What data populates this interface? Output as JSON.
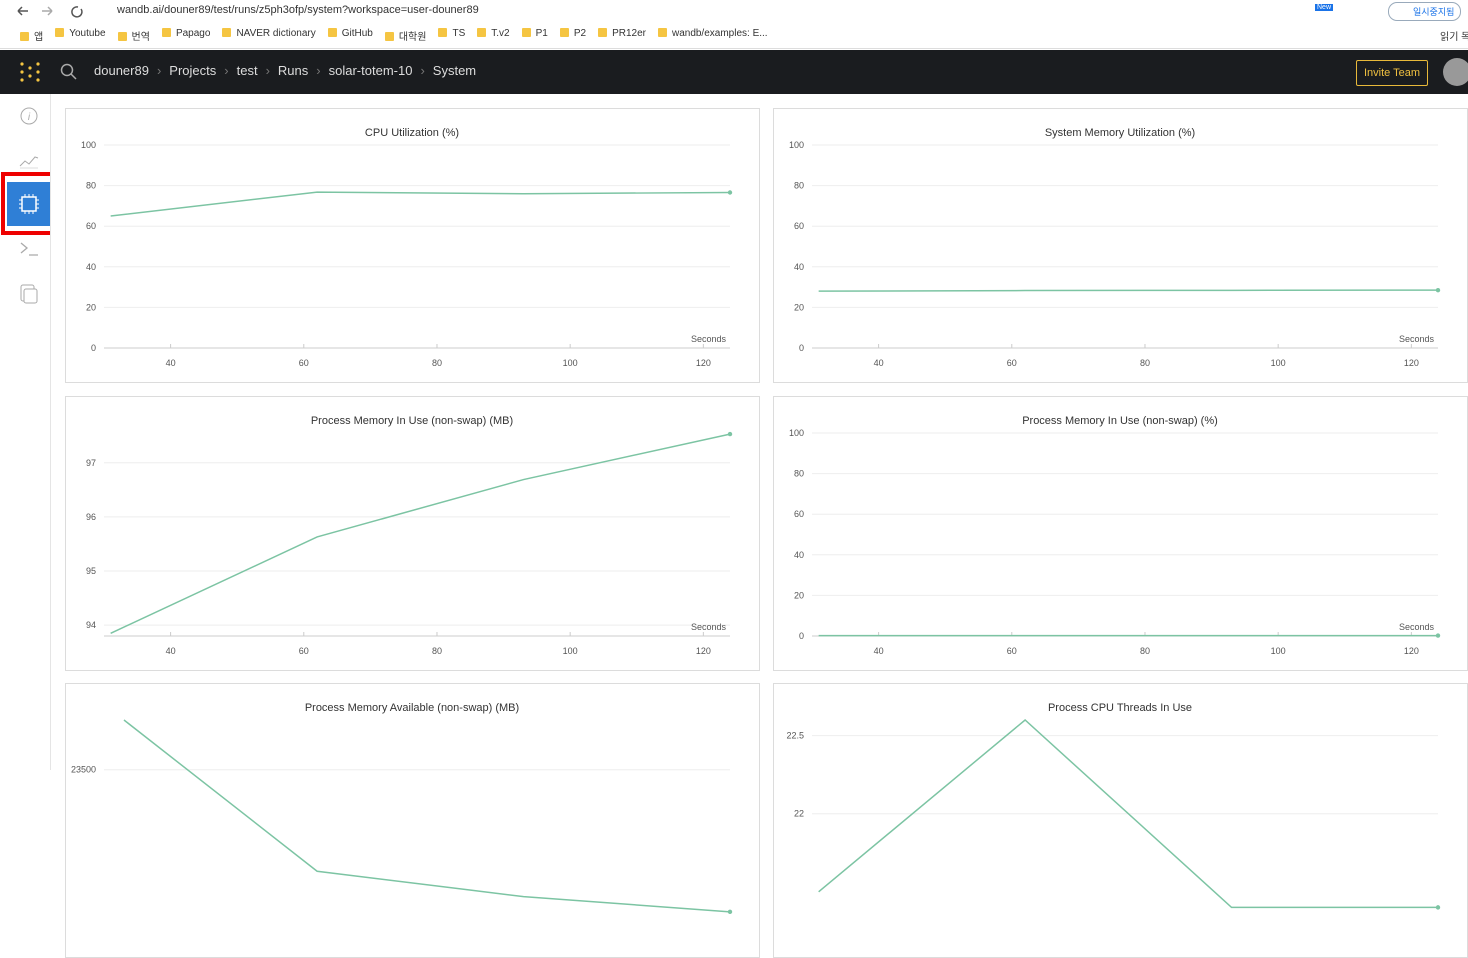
{
  "browser": {
    "url": "wandb.ai/douner89/test/runs/z5ph3ofp/system?workspace=user-douner89",
    "bookmarks": [
      "앱",
      "Youtube",
      "번역",
      "Papago",
      "NAVER dictionary",
      "GitHub",
      "대학원",
      "TS",
      "T.v2",
      "P1",
      "P2",
      "PR12er",
      "wandb/examples: E..."
    ],
    "reading_list": "읽기 목록",
    "profile_status": "일시중지됨",
    "new_badge": "New"
  },
  "nav": {
    "breadcrumb": [
      "douner89",
      "Projects",
      "test",
      "Runs",
      "solar-totem-10",
      "System"
    ],
    "invite": "Invite Team"
  },
  "chart_data": [
    {
      "type": "line",
      "title": "CPU Utilization (%)",
      "x": [
        31,
        62,
        93,
        124
      ],
      "values": [
        65,
        76.8,
        76,
        76.6
      ],
      "color": "#7cc4a3",
      "xlim": [
        30,
        124
      ],
      "ylim": [
        0,
        100
      ],
      "xticks": [
        40,
        60,
        80,
        100,
        120
      ],
      "yticks": [
        0,
        20,
        40,
        60,
        80,
        100
      ],
      "xlabel": "Seconds",
      "grid": true
    },
    {
      "type": "line",
      "title": "System Memory Utilization (%)",
      "x": [
        31,
        62,
        93,
        124
      ],
      "values": [
        28,
        28.3,
        28.4,
        28.5
      ],
      "color": "#7cc4a3",
      "xlim": [
        30,
        124
      ],
      "ylim": [
        0,
        100
      ],
      "xticks": [
        40,
        60,
        80,
        100,
        120
      ],
      "yticks": [
        0,
        20,
        40,
        60,
        80,
        100
      ],
      "xlabel": "Seconds",
      "grid": true
    },
    {
      "type": "line",
      "title": "Process Memory In Use (non-swap) (MB)",
      "x": [
        31,
        62,
        93,
        124
      ],
      "values": [
        93.85,
        95.63,
        96.69,
        97.53
      ],
      "color": "#7cc4a3",
      "xlim": [
        30,
        124
      ],
      "ylim": [
        93.8,
        97.55
      ],
      "xticks": [
        40,
        60,
        80,
        100,
        120
      ],
      "yticks": [
        94,
        95,
        96,
        97
      ],
      "xlabel": "Seconds",
      "grid": true
    },
    {
      "type": "line",
      "title": "Process Memory In Use (non-swap) (%)",
      "x": [
        31,
        62,
        93,
        124
      ],
      "values": [
        0.2,
        0.2,
        0.2,
        0.2
      ],
      "color": "#7cc4a3",
      "xlim": [
        30,
        124
      ],
      "ylim": [
        0,
        100
      ],
      "xticks": [
        40,
        60,
        80,
        100,
        120
      ],
      "yticks": [
        0,
        20,
        40,
        60,
        80,
        100
      ],
      "xlabel": "Seconds",
      "grid": true
    },
    {
      "type": "line",
      "title": "Process Memory Available (non-swap) (MB)",
      "x": [
        33,
        62,
        93,
        124
      ],
      "values": [
        23598,
        23300,
        23250,
        23220
      ],
      "color": "#7cc4a3",
      "xlim": [
        30,
        124
      ],
      "ylim": [
        23198,
        23598
      ],
      "yticks": [
        23500
      ],
      "grid": true
    },
    {
      "type": "line",
      "title": "Process CPU Threads In Use",
      "x": [
        31,
        62,
        93,
        124
      ],
      "values": [
        21.5,
        22.6,
        21.4,
        21.4
      ],
      "color": "#7cc4a3",
      "xlim": [
        30,
        124
      ],
      "ylim": [
        21.3,
        22.6
      ],
      "yticks": [
        22,
        22.5
      ],
      "grid": true
    }
  ]
}
